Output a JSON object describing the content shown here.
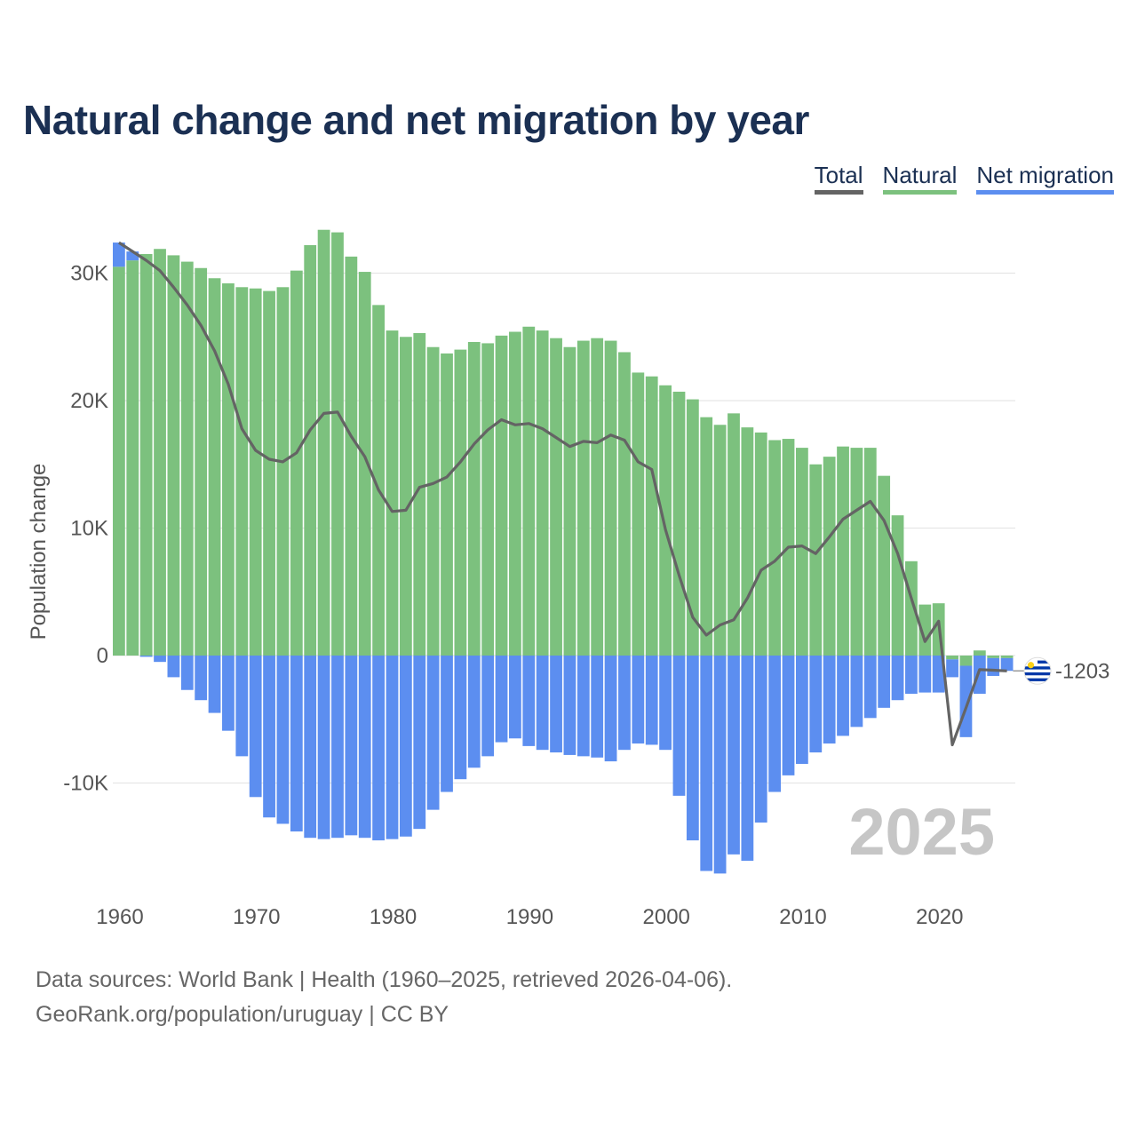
{
  "title": "Natural change and net migration by year",
  "legend": [
    {
      "label": "Total",
      "color": "#646464"
    },
    {
      "label": "Natural",
      "color": "#7cc17e"
    },
    {
      "label": "Net migration",
      "color": "#5c8ef0"
    }
  ],
  "footer": {
    "line1": "Data sources: World Bank | Health (1960–2025, retrieved 2026-04-06).",
    "line2": "GeoRank.org/population/uruguay | CC BY"
  },
  "chart_data": {
    "type": "bar",
    "title": "Natural change and net migration by year",
    "xlabel": "",
    "ylabel": "Population change",
    "ylim": [
      -17500,
      34000
    ],
    "yticks": [
      -10000,
      0,
      10000,
      20000,
      30000
    ],
    "ytick_labels": [
      "-10K",
      "0",
      "10K",
      "20K",
      "30K"
    ],
    "xticks": [
      1960,
      1970,
      1980,
      1990,
      2000,
      2010,
      2020
    ],
    "xtick_labels": [
      "1960",
      "1970",
      "1980",
      "1990",
      "2000",
      "2010",
      "2020"
    ],
    "year_label": "2025",
    "end_label": "-1203",
    "flag": "uruguay-flag",
    "colors": {
      "natural": "#7cc17e",
      "migration": "#5c8ef0",
      "total": "#646464"
    },
    "years": [
      1960,
      1961,
      1962,
      1963,
      1964,
      1965,
      1966,
      1967,
      1968,
      1969,
      1970,
      1971,
      1972,
      1973,
      1974,
      1975,
      1976,
      1977,
      1978,
      1979,
      1980,
      1981,
      1982,
      1983,
      1984,
      1985,
      1986,
      1987,
      1988,
      1989,
      1990,
      1991,
      1992,
      1993,
      1994,
      1995,
      1996,
      1997,
      1998,
      1999,
      2000,
      2001,
      2002,
      2003,
      2004,
      2005,
      2006,
      2007,
      2008,
      2009,
      2010,
      2011,
      2012,
      2013,
      2014,
      2015,
      2016,
      2017,
      2018,
      2019,
      2020,
      2021,
      2022,
      2023,
      2024,
      2025
    ],
    "series": [
      {
        "name": "Natural",
        "values": [
          30500,
          31000,
          31500,
          31900,
          31400,
          30900,
          30400,
          29600,
          29200,
          28900,
          28800,
          28600,
          28900,
          30200,
          32200,
          33400,
          33200,
          31300,
          30100,
          27500,
          25500,
          25000,
          25300,
          24200,
          23700,
          24000,
          24600,
          24500,
          25100,
          25400,
          25800,
          25500,
          24900,
          24200,
          24700,
          24900,
          24700,
          23800,
          22200,
          21900,
          21200,
          20700,
          20100,
          18700,
          18100,
          19000,
          17900,
          17500,
          16900,
          17000,
          16300,
          15000,
          15600,
          16400,
          16300,
          16300,
          14100,
          11000,
          7400,
          4000,
          4100,
          -300,
          -800,
          400,
          -200,
          -200
        ]
      },
      {
        "name": "Net migration",
        "values": [
          1900,
          700,
          -100,
          -500,
          -1700,
          -2700,
          -3500,
          -4500,
          -5900,
          -7900,
          -11100,
          -12700,
          -13200,
          -13800,
          -14300,
          -14400,
          -14300,
          -14100,
          -14300,
          -14500,
          -14400,
          -14200,
          -13600,
          -12100,
          -10700,
          -9700,
          -8800,
          -7900,
          -6800,
          -6500,
          -7100,
          -7400,
          -7600,
          -7800,
          -7900,
          -8000,
          -8300,
          -7400,
          -6900,
          -7000,
          -7400,
          -11000,
          -14500,
          -16900,
          -17100,
          -15600,
          -16100,
          -13100,
          -10700,
          -9400,
          -8500,
          -7600,
          -6900,
          -6300,
          -5600,
          -4900,
          -4100,
          -3500,
          -3000,
          -2900,
          -2900,
          -1400,
          -5600,
          -3000,
          -1400,
          -1000
        ]
      },
      {
        "name": "Total",
        "values": [
          32400,
          31700,
          31000,
          30200,
          28900,
          27500,
          25900,
          23900,
          21300,
          17800,
          16100,
          15400,
          15200,
          15900,
          17700,
          19000,
          19100,
          17200,
          15600,
          13000,
          11300,
          11400,
          13200,
          13500,
          14000,
          15200,
          16600,
          17700,
          18500,
          18100,
          18200,
          17800,
          17100,
          16400,
          16800,
          16700,
          17300,
          16900,
          15200,
          14600,
          9900,
          6300,
          3000,
          1600,
          2400,
          2800,
          4500,
          6700,
          7400,
          8500,
          8600,
          8000,
          9300,
          10700,
          11400,
          12100,
          10600,
          8000,
          4500,
          1100,
          2700,
          -7000,
          -4100,
          -1100,
          -1150,
          -1203
        ]
      }
    ]
  }
}
